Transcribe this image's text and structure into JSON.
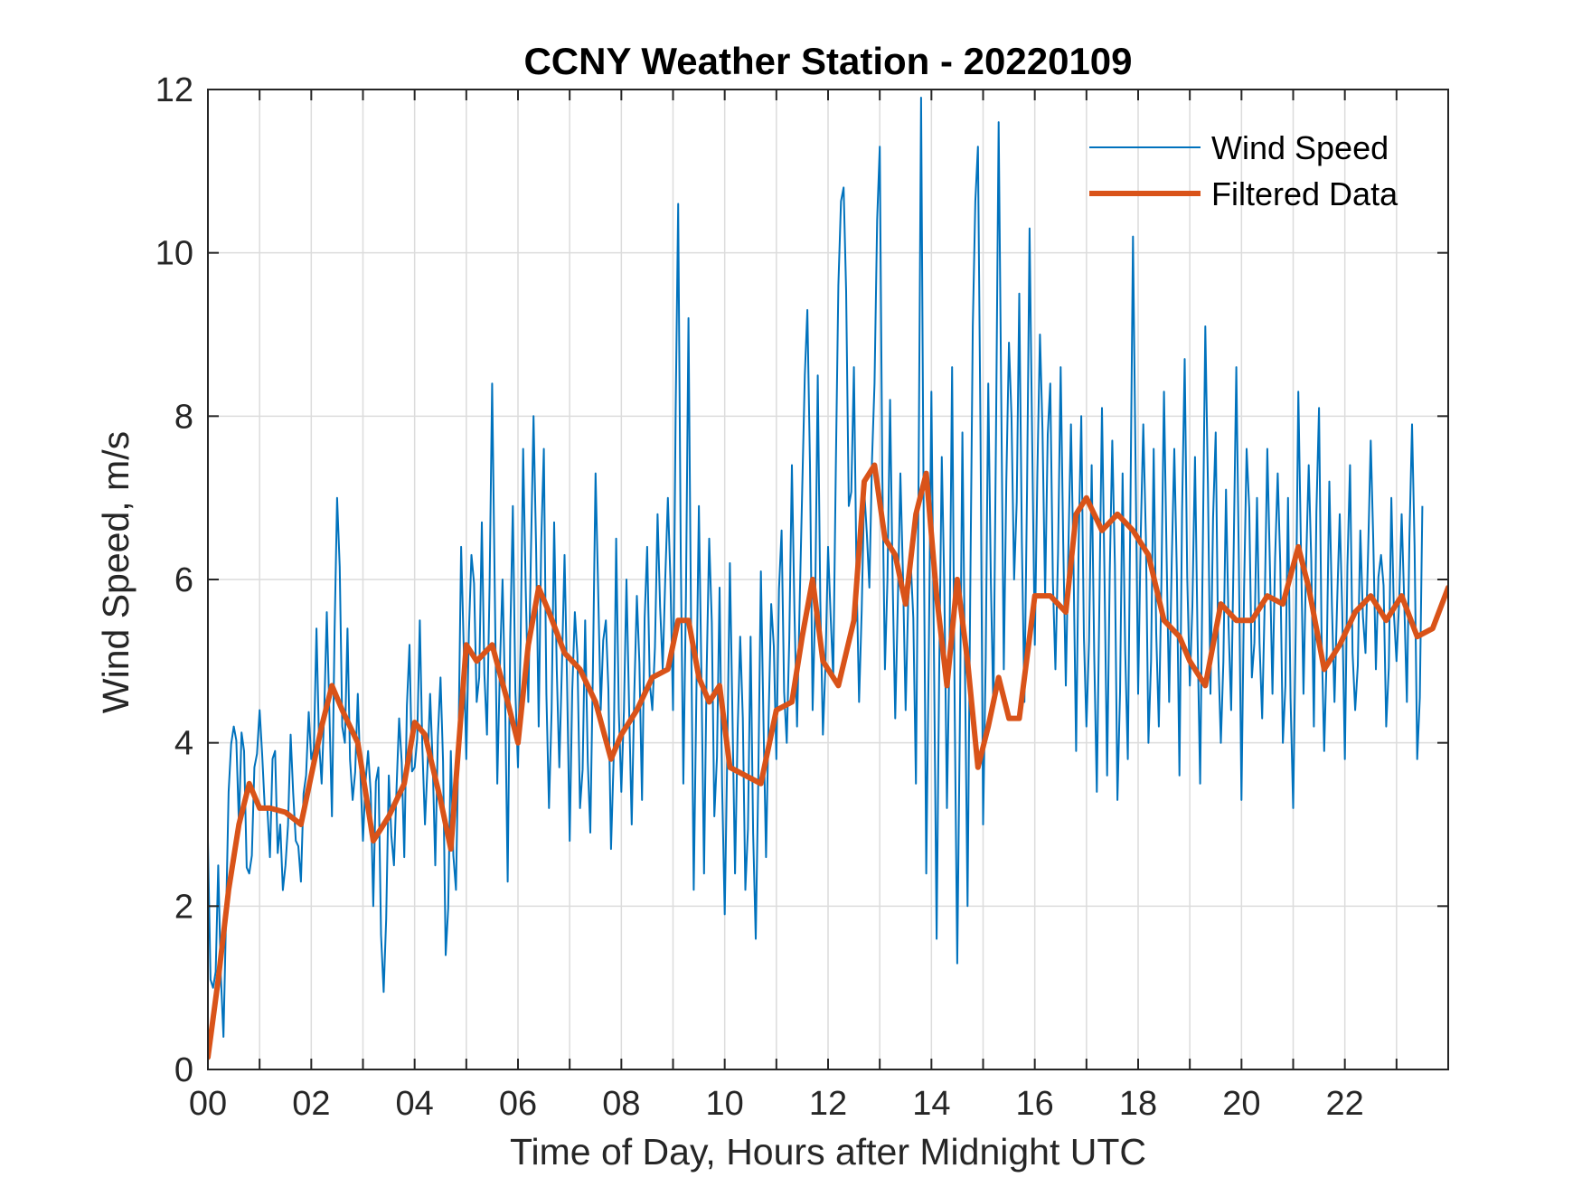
{
  "chart_data": {
    "type": "line",
    "title": "CCNY Weather Station - 20220109",
    "xlabel": "Time of Day, Hours after Midnight UTC",
    "ylabel": "Wind Speed, m/s",
    "xlim": [
      0,
      24
    ],
    "ylim": [
      0,
      12
    ],
    "grid": true,
    "legend_position": "top-right",
    "x_ticks": [
      0,
      2,
      4,
      6,
      8,
      10,
      12,
      14,
      16,
      18,
      20,
      22
    ],
    "x_tick_labels": [
      "00",
      "02",
      "04",
      "06",
      "08",
      "10",
      "12",
      "14",
      "16",
      "18",
      "20",
      "22"
    ],
    "x_minor_grid_step": 1,
    "y_ticks": [
      0,
      2,
      4,
      6,
      8,
      10,
      12
    ],
    "y_tick_labels": [
      "0",
      "2",
      "4",
      "6",
      "8",
      "10",
      "12"
    ],
    "series": [
      {
        "name": "Wind Speed",
        "color": "#0072BD",
        "style": "thin",
        "x_step": 0.1,
        "x_start": 0,
        "values": [
          2.8,
          1.0,
          2.5,
          0.4,
          3.4,
          4.2,
          3.0,
          3.9,
          2.4,
          3.7,
          4.4,
          3.2,
          2.6,
          3.9,
          3.0,
          2.5,
          4.1,
          2.8,
          2.3,
          3.6,
          3.8,
          5.4,
          3.5,
          5.6,
          3.1,
          7.0,
          4.2,
          5.4,
          3.3,
          4.6,
          2.8,
          3.9,
          2.0,
          3.7,
          0.95,
          3.6,
          2.5,
          4.3,
          2.6,
          5.2,
          3.7,
          5.5,
          3.0,
          4.6,
          2.5,
          4.8,
          1.4,
          3.9,
          2.2,
          6.4,
          3.8,
          6.3,
          4.5,
          6.7,
          4.1,
          8.4,
          3.5,
          6.0,
          2.3,
          6.9,
          3.7,
          7.6,
          4.5,
          8.0,
          4.2,
          7.6,
          3.2,
          6.7,
          3.7,
          6.3,
          2.8,
          5.6,
          3.2,
          5.5,
          2.9,
          7.3,
          4.4,
          5.5,
          2.7,
          6.5,
          3.4,
          6.0,
          3.0,
          5.8,
          3.3,
          6.4,
          4.4,
          6.8,
          4.9,
          7.0,
          4.4,
          10.6,
          3.5,
          9.2,
          2.2,
          6.9,
          2.4,
          6.5,
          3.1,
          5.9,
          1.9,
          6.2,
          2.4,
          5.3,
          2.2,
          5.3,
          1.6,
          6.1,
          2.6,
          5.7,
          3.8,
          6.6,
          4.0,
          7.4,
          4.2,
          7.1,
          9.3,
          4.4,
          8.5,
          4.1,
          6.4,
          4.8,
          9.6,
          10.8,
          6.9,
          8.6,
          4.5,
          7.1,
          5.9,
          8.4,
          11.3,
          4.9,
          8.2,
          4.3,
          7.3,
          4.4,
          6.2,
          3.5,
          11.9,
          2.4,
          8.3,
          1.6,
          7.5,
          3.2,
          8.6,
          1.3,
          7.8,
          2.0,
          9.1,
          11.3,
          3.0,
          8.4,
          4.4,
          11.6,
          4.9,
          8.9,
          6.0,
          9.5,
          4.5,
          10.3,
          5.2,
          9.0,
          5.8,
          8.4,
          4.9,
          8.6,
          4.7,
          7.9,
          3.9,
          8.0,
          4.2,
          7.4,
          3.4,
          8.1,
          3.6,
          7.7,
          3.3,
          7.3,
          3.8,
          10.2,
          4.6,
          7.9,
          4.0,
          7.6,
          4.2,
          8.3,
          4.5,
          7.6,
          3.6,
          8.7,
          4.7,
          7.5,
          3.5,
          9.1,
          4.6,
          7.8,
          4.0,
          7.1,
          4.4,
          8.6,
          3.3,
          7.6,
          4.8,
          7.0,
          4.3,
          7.6,
          4.6,
          7.3,
          4.0,
          7.0,
          3.2,
          8.3,
          4.6,
          7.4,
          4.2,
          8.1,
          3.9,
          7.2,
          4.5,
          6.8,
          3.8,
          7.4,
          4.4,
          6.6,
          5.1,
          7.7,
          4.9,
          6.3,
          4.2,
          7.0,
          5.0,
          6.8,
          4.5,
          7.9,
          3.8,
          6.9
        ]
      },
      {
        "name": "Filtered Data",
        "color": "#D95319",
        "style": "thick",
        "points": [
          [
            0,
            0.15
          ],
          [
            0.2,
            1.1
          ],
          [
            0.4,
            2.2
          ],
          [
            0.6,
            3.0
          ],
          [
            0.8,
            3.5
          ],
          [
            1.0,
            3.2
          ],
          [
            1.2,
            3.2
          ],
          [
            1.5,
            3.15
          ],
          [
            1.8,
            3.0
          ],
          [
            2.0,
            3.6
          ],
          [
            2.2,
            4.2
          ],
          [
            2.4,
            4.7
          ],
          [
            2.6,
            4.4
          ],
          [
            2.9,
            4.0
          ],
          [
            3.2,
            2.8
          ],
          [
            3.5,
            3.1
          ],
          [
            3.8,
            3.5
          ],
          [
            4.0,
            4.25
          ],
          [
            4.2,
            4.1
          ],
          [
            4.5,
            3.3
          ],
          [
            4.7,
            2.7
          ],
          [
            5.0,
            5.2
          ],
          [
            5.2,
            5.0
          ],
          [
            5.5,
            5.2
          ],
          [
            5.8,
            4.5
          ],
          [
            6.0,
            4.0
          ],
          [
            6.2,
            5.2
          ],
          [
            6.4,
            5.9
          ],
          [
            6.6,
            5.6
          ],
          [
            6.9,
            5.1
          ],
          [
            7.2,
            4.9
          ],
          [
            7.5,
            4.5
          ],
          [
            7.8,
            3.8
          ],
          [
            8.0,
            4.1
          ],
          [
            8.3,
            4.4
          ],
          [
            8.6,
            4.8
          ],
          [
            8.9,
            4.9
          ],
          [
            9.1,
            5.5
          ],
          [
            9.3,
            5.5
          ],
          [
            9.5,
            4.8
          ],
          [
            9.7,
            4.5
          ],
          [
            9.9,
            4.7
          ],
          [
            10.1,
            3.7
          ],
          [
            10.4,
            3.6
          ],
          [
            10.7,
            3.5
          ],
          [
            11.0,
            4.4
          ],
          [
            11.3,
            4.5
          ],
          [
            11.5,
            5.3
          ],
          [
            11.7,
            6.0
          ],
          [
            11.9,
            5.0
          ],
          [
            12.2,
            4.7
          ],
          [
            12.5,
            5.5
          ],
          [
            12.7,
            7.2
          ],
          [
            12.9,
            7.4
          ],
          [
            13.1,
            6.5
          ],
          [
            13.3,
            6.3
          ],
          [
            13.5,
            5.7
          ],
          [
            13.7,
            6.8
          ],
          [
            13.9,
            7.3
          ],
          [
            14.1,
            5.8
          ],
          [
            14.3,
            4.7
          ],
          [
            14.5,
            6.0
          ],
          [
            14.7,
            5.0
          ],
          [
            14.9,
            3.7
          ],
          [
            15.1,
            4.2
          ],
          [
            15.3,
            4.8
          ],
          [
            15.5,
            4.3
          ],
          [
            15.7,
            4.3
          ],
          [
            16.0,
            5.8
          ],
          [
            16.3,
            5.8
          ],
          [
            16.6,
            5.6
          ],
          [
            16.8,
            6.8
          ],
          [
            17.0,
            7.0
          ],
          [
            17.3,
            6.6
          ],
          [
            17.6,
            6.8
          ],
          [
            17.9,
            6.6
          ],
          [
            18.2,
            6.3
          ],
          [
            18.5,
            5.5
          ],
          [
            18.8,
            5.3
          ],
          [
            19.0,
            5.0
          ],
          [
            19.3,
            4.7
          ],
          [
            19.6,
            5.7
          ],
          [
            19.9,
            5.5
          ],
          [
            20.2,
            5.5
          ],
          [
            20.5,
            5.8
          ],
          [
            20.8,
            5.7
          ],
          [
            21.1,
            6.4
          ],
          [
            21.3,
            5.9
          ],
          [
            21.6,
            4.9
          ],
          [
            21.9,
            5.2
          ],
          [
            22.2,
            5.6
          ],
          [
            22.5,
            5.8
          ],
          [
            22.8,
            5.5
          ],
          [
            23.1,
            5.8
          ],
          [
            23.4,
            5.3
          ],
          [
            23.7,
            5.4
          ],
          [
            24.0,
            5.9
          ]
        ]
      }
    ]
  }
}
